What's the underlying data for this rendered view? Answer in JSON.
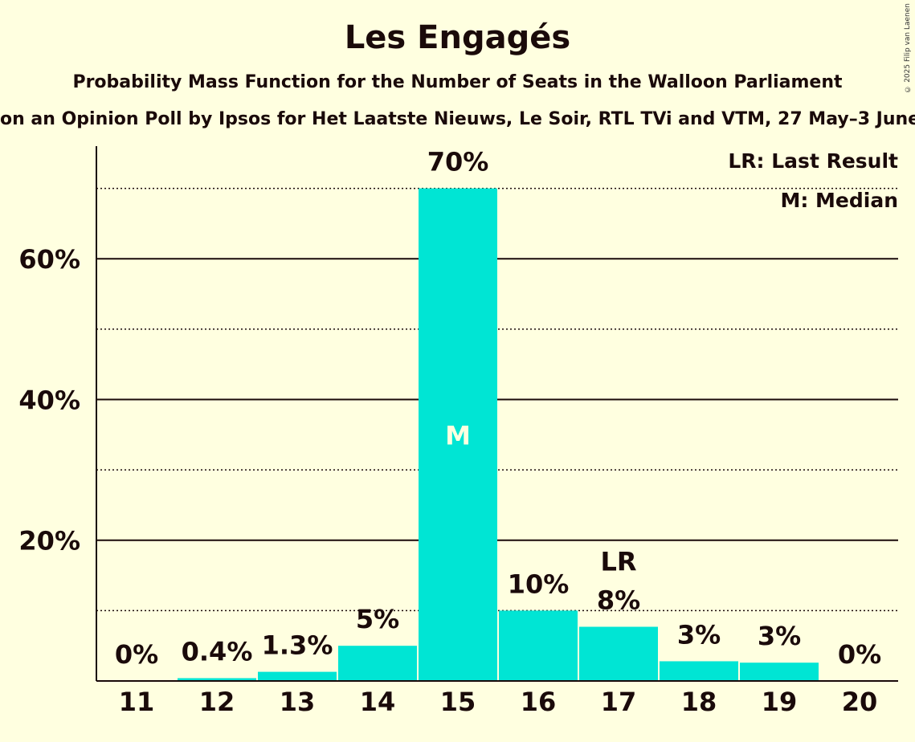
{
  "title": "Les Engagés",
  "subtitle": "Probability Mass Function for the Number of Seats in the Walloon Parliament",
  "source": "on an Opinion Poll by Ipsos for Het Laatste Nieuws, Le Soir, RTL TVi and VTM, 27 May–3 June",
  "copyright": "© 2025 Filip van Laenen",
  "colors": {
    "bar": "#00e5d4",
    "background": "#ffffe0",
    "text": "#1a0a0a"
  },
  "legend": {
    "last_result": "LR: Last Result",
    "median": "M: Median"
  },
  "chart_data": {
    "type": "bar",
    "categories": [
      "11",
      "12",
      "13",
      "14",
      "15",
      "16",
      "17",
      "18",
      "19",
      "20"
    ],
    "values": [
      0,
      0.4,
      1.3,
      5,
      70,
      10,
      8,
      3,
      3,
      0
    ],
    "display_values": [
      0,
      0.4,
      1.3,
      5,
      70,
      10,
      7.7,
      2.8,
      2.6,
      0
    ],
    "labels": [
      "0%",
      "0.4%",
      "1.3%",
      "5%",
      "70%",
      "10%",
      "8%",
      "3%",
      "3%",
      "0%"
    ],
    "median_category": "15",
    "median_marker": "M",
    "last_result_category": "17",
    "last_result_marker": "LR",
    "ylim": [
      0,
      76
    ],
    "yticks": [
      {
        "value": 20,
        "label": "20%"
      },
      {
        "value": 40,
        "label": "40%"
      },
      {
        "value": 60,
        "label": "60%"
      }
    ],
    "minor_gridlines": [
      10,
      30,
      50,
      70
    ],
    "grid": true,
    "legend_position": "top-right"
  }
}
